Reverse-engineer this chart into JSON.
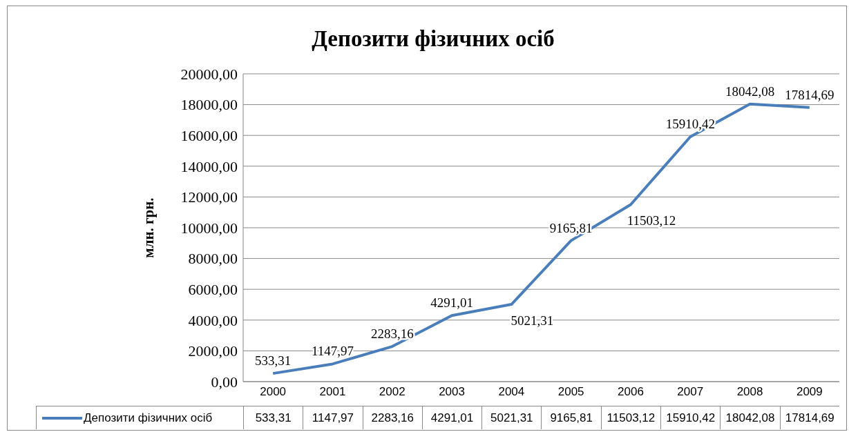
{
  "chart_data": {
    "type": "line",
    "title": "Депозити фізичних осіб",
    "ylabel": "млн. грн.",
    "categories": [
      "2000",
      "2001",
      "2002",
      "2003",
      "2004",
      "2005",
      "2006",
      "2007",
      "2008",
      "2009"
    ],
    "series": [
      {
        "name": "Депозити фізичних осіб",
        "color": "#4a7ebb",
        "values": [
          533.31,
          1147.97,
          2283.16,
          4291.01,
          5021.31,
          9165.81,
          11503.12,
          15910.42,
          18042.08,
          17814.69
        ],
        "value_labels": [
          "533,31",
          "1147,97",
          "2283,16",
          "4291,01",
          "5021,31",
          "9165,81",
          "11503,12",
          "15910,42",
          "18042,08",
          "17814,69"
        ]
      }
    ],
    "ylim": [
      0,
      20000
    ],
    "yticks": [
      {
        "value": 0,
        "label": "0,00"
      },
      {
        "value": 2000,
        "label": "2000,00"
      },
      {
        "value": 4000,
        "label": "4000,00"
      },
      {
        "value": 6000,
        "label": "6000,00"
      },
      {
        "value": 8000,
        "label": "8000,00"
      },
      {
        "value": 10000,
        "label": "10000,00"
      },
      {
        "value": 12000,
        "label": "12000,00"
      },
      {
        "value": 14000,
        "label": "14000,00"
      },
      {
        "value": 16000,
        "label": "16000,00"
      },
      {
        "value": 18000,
        "label": "18000,00"
      },
      {
        "value": 20000,
        "label": "20000,00"
      }
    ],
    "grid": "y",
    "legend": "bottom",
    "marker": "none",
    "line_style": "solid"
  }
}
